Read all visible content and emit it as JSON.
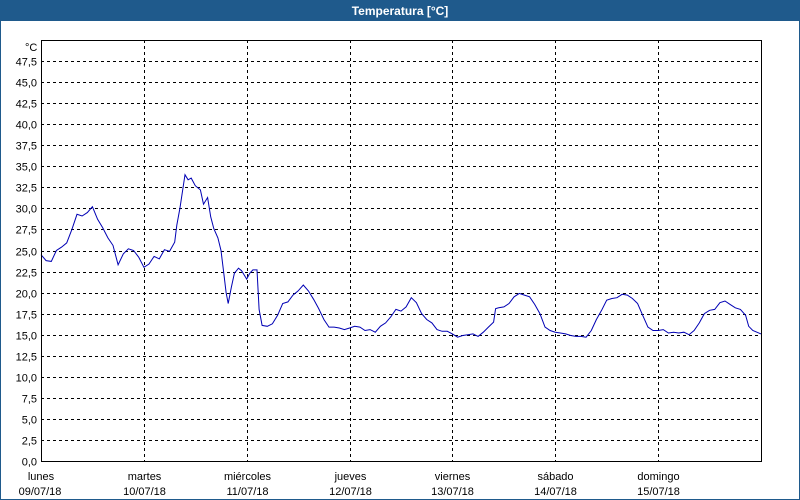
{
  "window": {
    "title": "Temperatura [°C]"
  },
  "colors": {
    "titlebar": "#1f5a8c",
    "line": "#0000b4",
    "grid": "#000000"
  },
  "chart_data": {
    "type": "line",
    "title": "Temperatura [°C]",
    "ylabel": "°C",
    "xlabel": "",
    "ylim": [
      0,
      50
    ],
    "xlim": [
      0,
      7
    ],
    "grid": true,
    "grid_style": "dashed",
    "y_ticks": [
      "0,0",
      "2,5",
      "5,0",
      "7,5",
      "10,0",
      "12,5",
      "15,0",
      "17,5",
      "20,0",
      "22,5",
      "25,0",
      "27,5",
      "30,0",
      "32,5",
      "35,0",
      "37,5",
      "40,0",
      "42,5",
      "45,0",
      "47,5"
    ],
    "x_ticks": [
      {
        "day": "lunes",
        "date": "09/07/18"
      },
      {
        "day": "martes",
        "date": "10/07/18"
      },
      {
        "day": "miércoles",
        "date": "11/07/18"
      },
      {
        "day": "jueves",
        "date": "12/07/18"
      },
      {
        "day": "viernes",
        "date": "13/07/18"
      },
      {
        "day": "sábado",
        "date": "14/07/18"
      },
      {
        "day": "domingo",
        "date": "15/07/18"
      }
    ],
    "series": [
      {
        "name": "",
        "points": [
          [
            0,
            24.5
          ],
          [
            0.05,
            23.8
          ],
          [
            0.1,
            23.7
          ],
          [
            0.15,
            25.0
          ],
          [
            0.2,
            25.4
          ],
          [
            0.25,
            25.9
          ],
          [
            0.3,
            27.5
          ],
          [
            0.35,
            29.3
          ],
          [
            0.4,
            29.1
          ],
          [
            0.45,
            29.5
          ],
          [
            0.5,
            30.2
          ],
          [
            0.55,
            28.7
          ],
          [
            0.6,
            27.7
          ],
          [
            0.65,
            26.5
          ],
          [
            0.7,
            25.6
          ],
          [
            0.75,
            23.3
          ],
          [
            0.8,
            24.6
          ],
          [
            0.85,
            25.2
          ],
          [
            0.9,
            25.0
          ],
          [
            0.95,
            24.2
          ],
          [
            1.0,
            23.0
          ],
          [
            1.05,
            23.4
          ],
          [
            1.1,
            24.3
          ],
          [
            1.15,
            24.0
          ],
          [
            1.2,
            25.1
          ],
          [
            1.25,
            24.9
          ],
          [
            1.3,
            26.0
          ],
          [
            1.32,
            28.0
          ],
          [
            1.35,
            30.0
          ],
          [
            1.4,
            34.0
          ],
          [
            1.43,
            33.4
          ],
          [
            1.46,
            33.6
          ],
          [
            1.5,
            32.7
          ],
          [
            1.55,
            32.2
          ],
          [
            1.58,
            30.5
          ],
          [
            1.62,
            31.3
          ],
          [
            1.65,
            29.0
          ],
          [
            1.68,
            27.6
          ],
          [
            1.72,
            26.5
          ],
          [
            1.75,
            25.0
          ],
          [
            1.78,
            22.0
          ],
          [
            1.8,
            20.0
          ],
          [
            1.82,
            18.7
          ],
          [
            1.85,
            20.6
          ],
          [
            1.88,
            22.3
          ],
          [
            1.92,
            22.9
          ],
          [
            1.95,
            22.6
          ],
          [
            2.0,
            21.6
          ],
          [
            2.03,
            22.3
          ],
          [
            2.06,
            22.7
          ],
          [
            2.1,
            22.7
          ],
          [
            2.12,
            18.0
          ],
          [
            2.15,
            16.1
          ],
          [
            2.2,
            16.0
          ],
          [
            2.25,
            16.3
          ],
          [
            2.3,
            17.3
          ],
          [
            2.35,
            18.7
          ],
          [
            2.4,
            18.9
          ],
          [
            2.45,
            19.7
          ],
          [
            2.5,
            20.2
          ],
          [
            2.55,
            20.9
          ],
          [
            2.6,
            20.2
          ],
          [
            2.65,
            19.2
          ],
          [
            2.7,
            18.1
          ],
          [
            2.75,
            16.8
          ],
          [
            2.8,
            15.9
          ],
          [
            2.85,
            15.9
          ],
          [
            2.9,
            15.8
          ],
          [
            2.95,
            15.6
          ],
          [
            3.0,
            15.8
          ],
          [
            3.05,
            16.0
          ],
          [
            3.1,
            15.9
          ],
          [
            3.15,
            15.5
          ],
          [
            3.2,
            15.6
          ],
          [
            3.25,
            15.3
          ],
          [
            3.3,
            16.0
          ],
          [
            3.35,
            16.4
          ],
          [
            3.4,
            17.1
          ],
          [
            3.45,
            18.0
          ],
          [
            3.5,
            17.8
          ],
          [
            3.55,
            18.3
          ],
          [
            3.6,
            19.4
          ],
          [
            3.65,
            18.8
          ],
          [
            3.7,
            17.5
          ],
          [
            3.75,
            16.8
          ],
          [
            3.8,
            16.4
          ],
          [
            3.85,
            15.6
          ],
          [
            3.9,
            15.4
          ],
          [
            3.95,
            15.4
          ],
          [
            4.0,
            15.1
          ],
          [
            4.05,
            14.7
          ],
          [
            4.1,
            14.9
          ],
          [
            4.15,
            15.0
          ],
          [
            4.2,
            15.1
          ],
          [
            4.25,
            14.8
          ],
          [
            4.3,
            15.3
          ],
          [
            4.35,
            15.9
          ],
          [
            4.4,
            16.5
          ],
          [
            4.42,
            18.1
          ],
          [
            4.45,
            18.2
          ],
          [
            4.5,
            18.3
          ],
          [
            4.55,
            18.7
          ],
          [
            4.6,
            19.5
          ],
          [
            4.65,
            19.9
          ],
          [
            4.7,
            19.7
          ],
          [
            4.75,
            19.5
          ],
          [
            4.8,
            18.6
          ],
          [
            4.85,
            17.5
          ],
          [
            4.9,
            15.9
          ],
          [
            4.95,
            15.5
          ],
          [
            5.0,
            15.3
          ],
          [
            5.05,
            15.2
          ],
          [
            5.1,
            15.1
          ],
          [
            5.15,
            14.9
          ],
          [
            5.2,
            14.8
          ],
          [
            5.25,
            14.8
          ],
          [
            5.3,
            14.7
          ],
          [
            5.35,
            15.5
          ],
          [
            5.4,
            16.8
          ],
          [
            5.45,
            17.9
          ],
          [
            5.5,
            19.1
          ],
          [
            5.55,
            19.3
          ],
          [
            5.6,
            19.4
          ],
          [
            5.65,
            19.8
          ],
          [
            5.7,
            19.7
          ],
          [
            5.75,
            19.3
          ],
          [
            5.8,
            18.7
          ],
          [
            5.85,
            17.3
          ],
          [
            5.9,
            15.9
          ],
          [
            5.95,
            15.5
          ],
          [
            6.0,
            15.5
          ],
          [
            6.05,
            15.6
          ],
          [
            6.1,
            15.2
          ],
          [
            6.15,
            15.3
          ],
          [
            6.2,
            15.2
          ],
          [
            6.25,
            15.3
          ],
          [
            6.3,
            15.0
          ],
          [
            6.35,
            15.5
          ],
          [
            6.4,
            16.4
          ],
          [
            6.45,
            17.5
          ],
          [
            6.5,
            17.9
          ],
          [
            6.55,
            18.0
          ],
          [
            6.6,
            18.8
          ],
          [
            6.65,
            19.0
          ],
          [
            6.7,
            18.6
          ],
          [
            6.75,
            18.2
          ],
          [
            6.8,
            18.0
          ],
          [
            6.85,
            17.3
          ],
          [
            6.88,
            16.0
          ],
          [
            6.92,
            15.5
          ],
          [
            6.96,
            15.3
          ],
          [
            7.0,
            15.1
          ]
        ]
      }
    ]
  }
}
